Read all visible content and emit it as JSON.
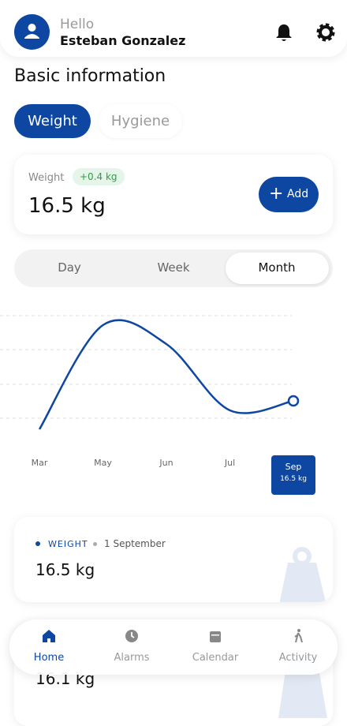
{
  "header": {
    "greeting": "Hello",
    "name": "Esteban Gonzalez"
  },
  "section_title": "Basic information",
  "tabs": [
    "Weight",
    "Hygiene"
  ],
  "weight_card": {
    "label": "Weight",
    "change": "+0.4 kg",
    "value": "16.5 kg",
    "button": "Add"
  },
  "periods": [
    "Day",
    "Week",
    "Month"
  ],
  "chart_data": {
    "type": "line",
    "categories": [
      "Mar",
      "May",
      "Jun",
      "Jul",
      "Sep"
    ],
    "values": [
      16.2,
      17.3,
      17.1,
      16.4,
      16.5
    ],
    "value_labels": [
      null,
      null,
      null,
      null,
      "16.5 kg"
    ],
    "color": "#0d47a1",
    "ylim": [
      16,
      17.5
    ]
  },
  "records": [
    {
      "type": "WEIGHT",
      "date": "1 September",
      "value": "16.5 kg"
    },
    {
      "value": "16.1 kg"
    }
  ],
  "nav": [
    "Home",
    "Alarms",
    "Calendar",
    "Activity"
  ]
}
